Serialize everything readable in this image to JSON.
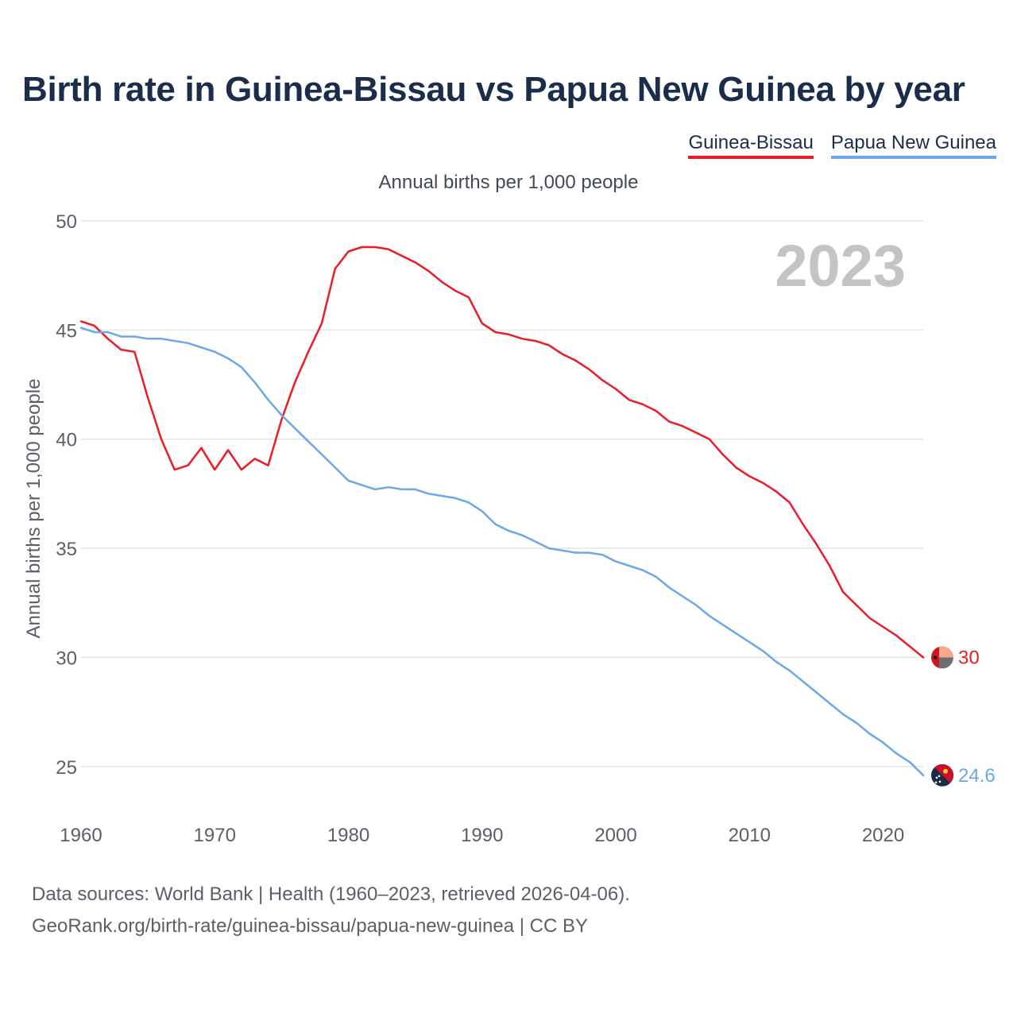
{
  "title": "Birth rate in Guinea-Bissau vs Papua New Guinea by year",
  "subtitle": "Annual births per 1,000 people",
  "legend": [
    {
      "label": "Guinea-Bissau",
      "color": "#ec1c24"
    },
    {
      "label": "Papua New Guinea",
      "color": "#6aa8e6"
    }
  ],
  "year_label": "2023",
  "footer": {
    "line1": "Data sources: World Bank | Health (1960–2023, retrieved 2026-04-06).",
    "line2": "GeoRank.org/birth-rate/guinea-bissau/papua-new-guinea | CC BY"
  },
  "chart_data": {
    "type": "line",
    "title": "Birth rate in Guinea-Bissau vs Papua New Guinea by year",
    "xlabel": "",
    "ylabel": "Annual births per 1,000 people",
    "xlim": [
      1960,
      2023
    ],
    "ylim": [
      23.5,
      50
    ],
    "xticks": [
      1960,
      1970,
      1980,
      1990,
      2000,
      2010,
      2020
    ],
    "yticks": [
      25,
      30,
      35,
      40,
      45,
      50
    ],
    "grid": true,
    "x": [
      1960,
      1961,
      1962,
      1963,
      1964,
      1965,
      1966,
      1967,
      1968,
      1969,
      1970,
      1971,
      1972,
      1973,
      1974,
      1975,
      1976,
      1977,
      1978,
      1979,
      1980,
      1981,
      1982,
      1983,
      1984,
      1985,
      1986,
      1987,
      1988,
      1989,
      1990,
      1991,
      1992,
      1993,
      1994,
      1995,
      1996,
      1997,
      1998,
      1999,
      2000,
      2001,
      2002,
      2003,
      2004,
      2005,
      2006,
      2007,
      2008,
      2009,
      2010,
      2011,
      2012,
      2013,
      2014,
      2015,
      2016,
      2017,
      2018,
      2019,
      2020,
      2021,
      2022,
      2023
    ],
    "series": [
      {
        "name": "Guinea-Bissau",
        "color": "#ec1c24",
        "end_label": "30",
        "values": [
          45.4,
          45.2,
          44.6,
          44.1,
          44.0,
          41.9,
          40.0,
          38.6,
          38.8,
          39.6,
          38.6,
          39.5,
          38.6,
          39.1,
          38.8,
          40.9,
          42.6,
          44.0,
          45.3,
          47.8,
          48.6,
          48.8,
          48.8,
          48.7,
          48.4,
          48.1,
          47.7,
          47.2,
          46.8,
          46.5,
          45.3,
          44.9,
          44.8,
          44.6,
          44.5,
          44.3,
          43.9,
          43.6,
          43.2,
          42.7,
          42.3,
          41.8,
          41.6,
          41.3,
          40.8,
          40.6,
          40.3,
          40.0,
          39.3,
          38.7,
          38.3,
          38.0,
          37.6,
          37.1,
          36.1,
          35.2,
          34.2,
          33.0,
          32.4,
          31.8,
          31.4,
          31.0,
          30.5,
          30.0
        ]
      },
      {
        "name": "Papua New Guinea",
        "color": "#6aa8e6",
        "end_label": "24.6",
        "values": [
          45.1,
          44.9,
          44.9,
          44.7,
          44.7,
          44.6,
          44.6,
          44.5,
          44.4,
          44.2,
          44.0,
          43.7,
          43.3,
          42.6,
          41.8,
          41.1,
          40.5,
          39.9,
          39.3,
          38.7,
          38.1,
          37.9,
          37.7,
          37.8,
          37.7,
          37.7,
          37.5,
          37.4,
          37.3,
          37.1,
          36.7,
          36.1,
          35.8,
          35.6,
          35.3,
          35.0,
          34.9,
          34.8,
          34.8,
          34.7,
          34.4,
          34.2,
          34.0,
          33.7,
          33.2,
          32.8,
          32.4,
          31.9,
          31.5,
          31.1,
          30.7,
          30.3,
          29.8,
          29.4,
          28.9,
          28.4,
          27.9,
          27.4,
          27.0,
          26.5,
          26.1,
          25.6,
          25.2,
          24.6
        ]
      }
    ]
  }
}
